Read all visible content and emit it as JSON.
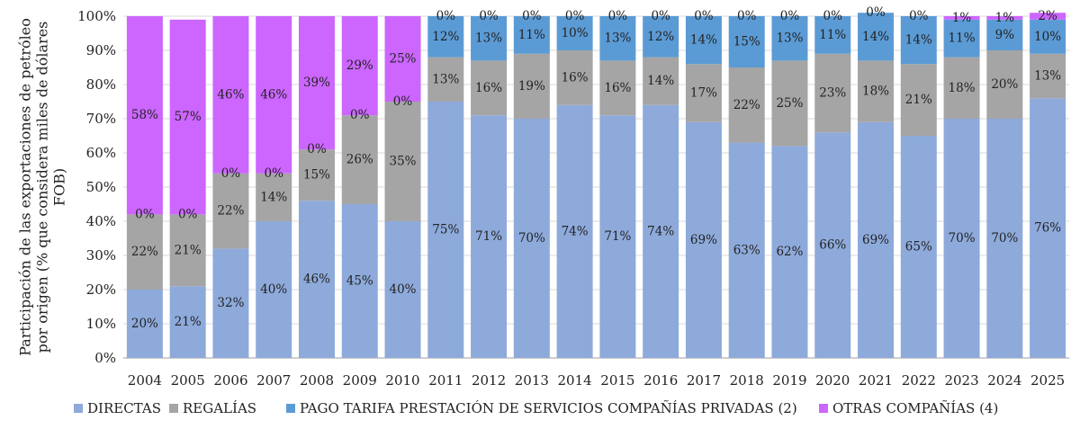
{
  "chart_data": {
    "type": "bar",
    "stacked": true,
    "percent_axis": true,
    "ylabel_lines": [
      "Participación de las exportaciones de petróleo",
      "por origen (% que considera miles de dólares",
      "FOB)"
    ],
    "ylim": [
      0,
      100
    ],
    "yticks": [
      "0%",
      "10%",
      "20%",
      "30%",
      "40%",
      "50%",
      "60%",
      "70%",
      "80%",
      "90%",
      "100%"
    ],
    "categories": [
      "2004",
      "2005",
      "2006",
      "2007",
      "2008",
      "2009",
      "2010",
      "2011",
      "2012",
      "2013",
      "2014",
      "2015",
      "2016",
      "2017",
      "2018",
      "2019",
      "2020",
      "2021",
      "2022",
      "2023",
      "2024",
      "2025"
    ],
    "legend_position": "bottom",
    "series": [
      {
        "name": "DIRECTAS",
        "color": "#8eaadb",
        "values": [
          20,
          21,
          32,
          40,
          46,
          45,
          40,
          75,
          71,
          70,
          74,
          71,
          74,
          69,
          63,
          62,
          66,
          69,
          65,
          70,
          70,
          76
        ]
      },
      {
        "name": "REGALÍAS",
        "color": "#a5a5a5",
        "values": [
          22,
          21,
          22,
          14,
          15,
          26,
          35,
          13,
          16,
          19,
          16,
          16,
          14,
          17,
          22,
          25,
          23,
          18,
          21,
          18,
          20,
          13
        ]
      },
      {
        "name": "PAGO TARIFA PRESTACIÓN DE SERVICIOS COMPAÑÍAS PRIVADAS (2)",
        "color": "#5b9bd5",
        "values": [
          0,
          0,
          0,
          0,
          0,
          0,
          0,
          12,
          13,
          11,
          10,
          13,
          12,
          14,
          15,
          13,
          11,
          14,
          14,
          11,
          9,
          10
        ]
      },
      {
        "name": "OTRAS COMPAÑÍAS (4)",
        "color": "#cc66ff",
        "values": [
          58,
          57,
          46,
          46,
          39,
          29,
          25,
          0,
          0,
          0,
          0,
          0,
          0,
          0,
          0,
          0,
          0,
          0,
          0,
          1,
          1,
          2
        ]
      }
    ]
  }
}
